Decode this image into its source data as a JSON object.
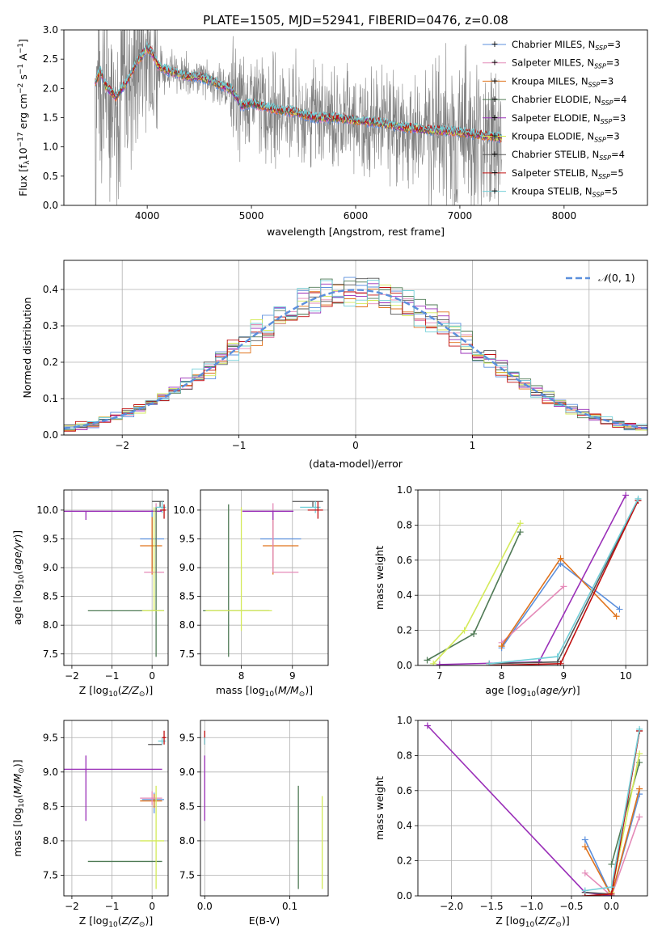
{
  "figure": {
    "title": "PLATE=1505, MJD=52941, FIBERID=0476, z=0.08"
  },
  "colors": {
    "chabrier_miles": "#5b8fdc",
    "salpeter_miles": "#e48ab8",
    "kroupa_miles": "#e0731c",
    "chabrier_elodie": "#4f7a55",
    "salpeter_elodie": "#9a2fb8",
    "kroupa_elodie": "#d4ea5a",
    "chabrier_stelib": "#555555",
    "salpeter_stelib": "#c01010",
    "kroupa_stelib": "#72cfd8",
    "observed": "#808080"
  },
  "chart_data": [
    {
      "id": "spectrum",
      "type": "line",
      "title": "PLATE=1505, MJD=52941, FIBERID=0476, z=0.08",
      "xlabel": "wavelength [Angstrom, rest frame]",
      "ylabel": "Flux [f_λ 10^-17 erg cm^-2 s^-1 A^-1]",
      "xlim": [
        3200,
        8800
      ],
      "ylim": [
        0,
        3.0
      ],
      "xticks": [
        "4000",
        "5000",
        "6000",
        "7000",
        "8000"
      ],
      "yticks": [
        "0.0",
        "0.5",
        "1.0",
        "1.5",
        "2.0",
        "2.5",
        "3.0"
      ],
      "legend": [
        "Chabrier MILES, N_SSP=3",
        "Salpeter MILES, N_SSP=3",
        "Kroupa MILES, N_SSP=3",
        "Chabrier ELODIE, N_SSP=4",
        "Salpeter ELODIE, N_SSP=3",
        "Kroupa ELODIE, N_SSP=3",
        "Chabrier STELIB, N_SSP=4",
        "Salpeter STELIB, N_SSP=5",
        "Kroupa STELIB, N_SSP=5"
      ],
      "legend_position": "right",
      "model_continuum": {
        "x": [
          3500,
          3550,
          3600,
          3700,
          3800,
          3900,
          3950,
          4000,
          4050,
          4100,
          4200,
          4300,
          4400,
          4500,
          4600,
          4700,
          4800,
          4860,
          4900,
          5000,
          5200,
          5400,
          5600,
          5800,
          6000,
          6200,
          6400,
          6600,
          6800,
          7000,
          7200,
          7400
        ],
        "y": [
          2.1,
          2.3,
          2.05,
          1.85,
          2.1,
          2.45,
          2.55,
          2.7,
          2.6,
          2.4,
          2.3,
          2.25,
          2.2,
          2.2,
          2.15,
          2.05,
          2.0,
          1.85,
          1.7,
          1.75,
          1.65,
          1.6,
          1.5,
          1.5,
          1.45,
          1.42,
          1.35,
          1.3,
          1.28,
          1.25,
          1.2,
          1.15
        ]
      }
    },
    {
      "id": "residuals",
      "type": "histogram",
      "xlabel": "(data-model)/error",
      "ylabel": "Normed distribution",
      "xlim": [
        -2.5,
        2.5
      ],
      "ylim": [
        0,
        0.48
      ],
      "xticks": [
        "−2",
        "−1",
        "0",
        "1",
        "2"
      ],
      "yticks": [
        "0.0",
        "0.1",
        "0.2",
        "0.3",
        "0.4"
      ],
      "legend": [
        "𝒩(0,1)"
      ],
      "legend_position": "top-right",
      "bin_width": 0.1,
      "gaussian": {
        "mean": 0,
        "sigma": 1
      }
    },
    {
      "id": "age_vs_Z",
      "type": "errorbar",
      "xlabel": "Z [log10(Z/Z⊙)]",
      "ylabel": "age  [log10(age/yr)]",
      "xlim": [
        -2.2,
        0.4
      ],
      "ylim": [
        7.3,
        10.35
      ],
      "xticks": [
        "−2",
        "−1",
        "0"
      ],
      "yticks": [
        "7.5",
        "8.0",
        "8.5",
        "9.0",
        "9.5",
        "10.0"
      ],
      "points": [
        {
          "series": "chabrier_miles",
          "x": 0.0,
          "y": 9.5,
          "xerr": [
            0.3,
            0.3
          ],
          "yerr": [
            0.5,
            0.5
          ]
        },
        {
          "series": "kroupa_miles",
          "x": 0.0,
          "y": 9.38,
          "xerr": [
            0.3,
            0.25
          ],
          "yerr": [
            0.5,
            0.5
          ]
        },
        {
          "series": "salpeter_miles",
          "x": 0.1,
          "y": 8.92,
          "xerr": [
            0.3,
            0.2
          ],
          "yerr": [
            0.0,
            1.2
          ]
        },
        {
          "series": "salpeter_elodie",
          "x": -1.65,
          "y": 9.98,
          "xerr": [
            0.55,
            1.9
          ],
          "yerr": [
            0.15,
            0.0
          ]
        },
        {
          "series": "chabrier_elodie",
          "x": 0.1,
          "y": 8.25,
          "xerr": [
            1.7,
            0.2
          ],
          "yerr": [
            0.8,
            1.8
          ]
        },
        {
          "series": "kroupa_elodie",
          "x": 0.05,
          "y": 8.25,
          "xerr": [
            0.3,
            0.25
          ],
          "yerr": [
            0.0,
            1.8
          ]
        },
        {
          "series": "chabrier_stelib",
          "x": 0.2,
          "y": 10.15,
          "xerr": [
            0.2,
            0.1
          ],
          "yerr": [
            0.1,
            0.0
          ]
        },
        {
          "series": "kroupa_stelib",
          "x": 0.25,
          "y": 10.05,
          "xerr": [
            0.15,
            0.1
          ],
          "yerr": [
            0.1,
            0.1
          ]
        },
        {
          "series": "salpeter_stelib",
          "x": 0.3,
          "y": 10.0,
          "xerr": [
            0.1,
            0.05
          ],
          "yerr": [
            0.15,
            0.1
          ]
        }
      ]
    },
    {
      "id": "age_vs_mass",
      "type": "errorbar",
      "xlabel": "mass [log10(M/M⊙)]",
      "ylabel": "",
      "xlim": [
        7.2,
        9.7
      ],
      "ylim": [
        7.3,
        10.35
      ],
      "xticks": [
        "8",
        "9"
      ],
      "yticks": [
        "7.5",
        "8.0",
        "8.5",
        "9.0",
        "9.5",
        "10.0"
      ],
      "points": [
        {
          "series": "chabrier_miles",
          "x": 8.62,
          "y": 9.5,
          "xerr": [
            0.25,
            0.55
          ],
          "yerr": [
            0.5,
            0.5
          ]
        },
        {
          "series": "kroupa_miles",
          "x": 8.62,
          "y": 9.38,
          "xerr": [
            0.2,
            0.5
          ],
          "yerr": [
            0.5,
            0.5
          ]
        },
        {
          "series": "salpeter_miles",
          "x": 8.62,
          "y": 8.92,
          "xerr": [
            0.0,
            0.5
          ],
          "yerr": [
            0.0,
            1.2
          ]
        },
        {
          "series": "salpeter_elodie",
          "x": 8.62,
          "y": 9.98,
          "xerr": [
            0.6,
            0.4
          ],
          "yerr": [
            0.15,
            0.0
          ]
        },
        {
          "series": "chabrier_elodie",
          "x": 7.75,
          "y": 8.25,
          "xerr": [
            0.5,
            0.8
          ],
          "yerr": [
            0.8,
            1.85
          ]
        },
        {
          "series": "kroupa_elodie",
          "x": 8.0,
          "y": 8.25,
          "xerr": [
            0.7,
            0.6
          ],
          "yerr": [
            0.35,
            1.8
          ]
        },
        {
          "series": "chabrier_stelib",
          "x": 9.4,
          "y": 10.15,
          "xerr": [
            0.4,
            0.2
          ],
          "yerr": [
            0.1,
            0.0
          ]
        },
        {
          "series": "kroupa_stelib",
          "x": 9.45,
          "y": 10.05,
          "xerr": [
            0.3,
            0.1
          ],
          "yerr": [
            0.1,
            0.1
          ]
        },
        {
          "series": "salpeter_stelib",
          "x": 9.5,
          "y": 10.0,
          "xerr": [
            0.2,
            0.1
          ],
          "yerr": [
            0.15,
            0.15
          ]
        }
      ]
    },
    {
      "id": "mass_weight_vs_age",
      "type": "line",
      "xlabel": "age  [log10(age/yr)]",
      "ylabel": "mass weight",
      "xlim": [
        6.65,
        10.35
      ],
      "ylim": [
        0,
        1.0
      ],
      "xticks": [
        "7",
        "8",
        "9",
        "10"
      ],
      "yticks": [
        "0.0",
        "0.2",
        "0.4",
        "0.6",
        "0.8",
        "1.0"
      ],
      "series": [
        {
          "key": "chabrier_miles",
          "x": [
            8.0,
            8.95,
            9.9
          ],
          "y": [
            0.1,
            0.58,
            0.32
          ]
        },
        {
          "key": "salpeter_miles",
          "x": [
            8.0,
            9.0
          ],
          "y": [
            0.13,
            0.45
          ]
        },
        {
          "key": "kroupa_miles",
          "x": [
            8.0,
            8.95,
            9.85
          ],
          "y": [
            0.11,
            0.61,
            0.28
          ]
        },
        {
          "key": "chabrier_elodie",
          "x": [
            6.8,
            7.55,
            8.3
          ],
          "y": [
            0.03,
            0.18,
            0.76
          ]
        },
        {
          "key": "salpeter_elodie",
          "x": [
            7.0,
            8.6,
            10.0
          ],
          "y": [
            0.005,
            0.02,
            0.97
          ]
        },
        {
          "key": "kroupa_elodie",
          "x": [
            6.9,
            7.4,
            8.3
          ],
          "y": [
            0.01,
            0.2,
            0.81
          ]
        },
        {
          "key": "chabrier_stelib",
          "x": [
            7.8,
            8.9,
            10.2
          ],
          "y": [
            0.01,
            0.02,
            0.94
          ]
        },
        {
          "key": "salpeter_stelib",
          "x": [
            7.8,
            8.95,
            10.2
          ],
          "y": [
            0.0,
            0.01,
            0.94
          ]
        },
        {
          "key": "kroupa_stelib",
          "x": [
            7.8,
            8.9,
            10.2
          ],
          "y": [
            0.01,
            0.05,
            0.95
          ]
        }
      ]
    },
    {
      "id": "mass_vs_Z",
      "type": "errorbar",
      "xlabel": "Z [log10(Z/Z⊙)]",
      "ylabel": "mass [log10(M/M⊙)]",
      "xlim": [
        -2.2,
        0.4
      ],
      "ylim": [
        7.2,
        9.75
      ],
      "xticks": [
        "−2",
        "−1",
        "0"
      ],
      "yticks": [
        "7.5",
        "8.0",
        "8.5",
        "9.0",
        "9.5"
      ],
      "points": [
        {
          "series": "chabrier_miles",
          "x": 0.05,
          "y": 8.6,
          "xerr": [
            0.3,
            0.25
          ],
          "yerr": [
            0.2,
            0.1
          ]
        },
        {
          "series": "kroupa_miles",
          "x": 0.05,
          "y": 8.58,
          "xerr": [
            0.35,
            0.2
          ],
          "yerr": [
            0.1,
            0.1
          ]
        },
        {
          "series": "salpeter_miles",
          "x": 0.0,
          "y": 8.62,
          "xerr": [
            0.3,
            0.25
          ],
          "yerr": [
            0.1,
            0.1
          ]
        },
        {
          "series": "salpeter_elodie",
          "x": -1.65,
          "y": 9.04,
          "xerr": [
            0.55,
            1.9
          ],
          "yerr": [
            0.75,
            0.2
          ]
        },
        {
          "series": "chabrier_elodie",
          "x": 0.1,
          "y": 7.7,
          "xerr": [
            1.7,
            0.15
          ],
          "yerr": [
            0.0,
            0.0
          ]
        },
        {
          "series": "kroupa_elodie",
          "x": 0.1,
          "y": 8.0,
          "xerr": [
            0.4,
            0.2
          ],
          "yerr": [
            0.7,
            0.8
          ]
        },
        {
          "series": "chabrier_stelib",
          "x": 0.15,
          "y": 9.4,
          "xerr": [
            0.25,
            0.1
          ],
          "yerr": [
            0.0,
            0.0
          ]
        },
        {
          "series": "kroupa_stelib",
          "x": 0.25,
          "y": 9.45,
          "xerr": [
            0.1,
            0.1
          ],
          "yerr": [
            0.05,
            0.05
          ]
        },
        {
          "series": "salpeter_stelib",
          "x": 0.3,
          "y": 9.5,
          "xerr": [
            0.05,
            0.05
          ],
          "yerr": [
            0.1,
            0.1
          ]
        }
      ]
    },
    {
      "id": "mass_vs_ebv",
      "type": "errorbar",
      "xlabel": "E(B-V)",
      "ylabel": "",
      "xlim": [
        -0.005,
        0.145
      ],
      "ylim": [
        7.2,
        9.75
      ],
      "xticks": [
        "0.0",
        "0.1"
      ],
      "yticks": [
        "7.5",
        "8.0",
        "8.5",
        "9.0",
        "9.5"
      ],
      "points": [
        {
          "series": "salpeter_elodie",
          "x": 0.0,
          "y": 9.04,
          "xerr": [
            0,
            0
          ],
          "yerr": [
            0.75,
            0.2
          ]
        },
        {
          "series": "salpeter_stelib",
          "x": 0.0,
          "y": 9.5,
          "xerr": [
            0,
            0
          ],
          "yerr": [
            0.1,
            0.1
          ]
        },
        {
          "series": "kroupa_stelib",
          "x": 0.0,
          "y": 9.45,
          "xerr": [
            0,
            0
          ],
          "yerr": [
            0.05,
            0.05
          ]
        },
        {
          "series": "chabrier_elodie",
          "x": 0.11,
          "y": 8.05,
          "xerr": [
            0,
            0
          ],
          "yerr": [
            0.75,
            0.75
          ]
        },
        {
          "series": "kroupa_elodie",
          "x": 0.138,
          "y": 8.0,
          "xerr": [
            0,
            0
          ],
          "yerr": [
            0.7,
            0.65
          ]
        }
      ]
    },
    {
      "id": "mass_weight_vs_Z",
      "type": "line",
      "xlabel": "Z [log10(Z/Z⊙)]",
      "ylabel": "mass weight",
      "xlim": [
        -2.42,
        0.45
      ],
      "ylim": [
        0,
        1.0
      ],
      "xticks": [
        "−2.0",
        "−1.5",
        "−1.0",
        "−0.5",
        "0.0"
      ],
      "yticks": [
        "0.0",
        "0.2",
        "0.4",
        "0.6",
        "0.8",
        "1.0"
      ],
      "series": [
        {
          "key": "chabrier_miles",
          "x": [
            -0.33,
            0.0,
            0.35
          ],
          "y": [
            0.32,
            0.0,
            0.58
          ]
        },
        {
          "key": "salpeter_miles",
          "x": [
            -0.33,
            0.0,
            0.35
          ],
          "y": [
            0.13,
            0.0,
            0.45
          ]
        },
        {
          "key": "kroupa_miles",
          "x": [
            -0.33,
            0.0,
            0.35
          ],
          "y": [
            0.28,
            0.0,
            0.61
          ]
        },
        {
          "key": "chabrier_elodie",
          "x": [
            0.0,
            0.35
          ],
          "y": [
            0.18,
            0.76
          ]
        },
        {
          "key": "salpeter_elodie",
          "x": [
            -2.3,
            -0.33,
            0.0
          ],
          "y": [
            0.97,
            0.02,
            0.0
          ]
        },
        {
          "key": "kroupa_elodie",
          "x": [
            0.0,
            0.35
          ],
          "y": [
            0.02,
            0.81
          ]
        },
        {
          "key": "chabrier_stelib",
          "x": [
            -0.33,
            0.0,
            0.35
          ],
          "y": [
            0.02,
            0.01,
            0.94
          ]
        },
        {
          "key": "salpeter_stelib",
          "x": [
            -0.33,
            0.0,
            0.35
          ],
          "y": [
            0.0,
            0.01,
            0.94
          ]
        },
        {
          "key": "kroupa_stelib",
          "x": [
            -0.33,
            0.0,
            0.35
          ],
          "y": [
            0.03,
            0.05,
            0.95
          ]
        }
      ]
    }
  ]
}
